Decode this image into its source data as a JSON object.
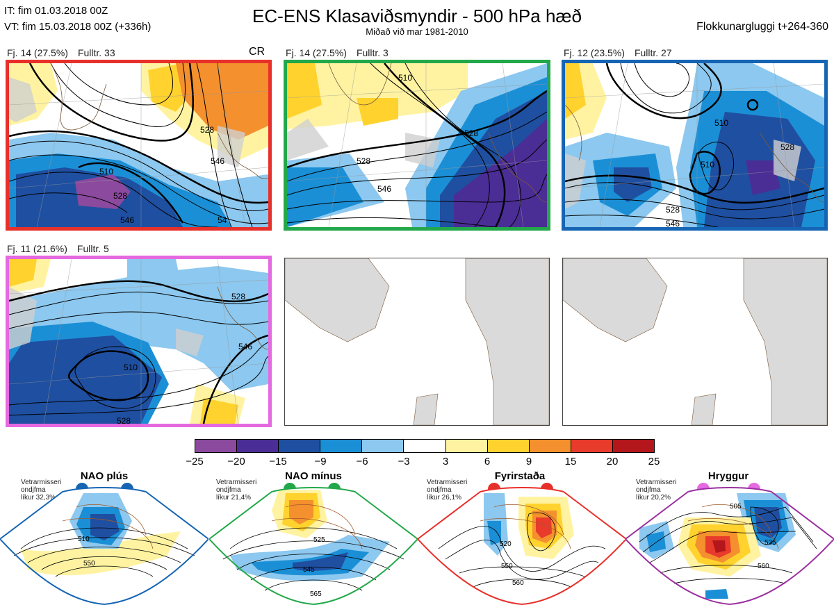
{
  "header": {
    "it": "IT: fim 01.03.2018 00Z",
    "vt": "VT: fim 15.03.2018 00Z  (+336h)",
    "title": "EC-ENS Klasaviðsmyndir - 500 hPa hæð",
    "subtitle": "Miðað við mar 1981-2010",
    "window": "Flokkunargluggi t+264-360"
  },
  "panels": [
    {
      "label": "Fj. 14 (27.5%)",
      "members": "Fulltr. 33",
      "flag": "CR",
      "border": "#e8302a",
      "contours": [
        "528",
        "546",
        "510",
        "546",
        "528",
        "54"
      ]
    },
    {
      "label": "Fj. 14 (27.5%)",
      "members": "Fulltr. 3",
      "flag": "",
      "border": "#22a84a",
      "contours": [
        "528",
        "546",
        "528",
        "510"
      ]
    },
    {
      "label": "Fj. 12 (23.5%)",
      "members": "Fulltr. 27",
      "flag": "",
      "border": "#1565b4",
      "contours": [
        "510",
        "528",
        "546",
        "528",
        "510"
      ]
    },
    {
      "label": "Fj. 11 (21.6%)",
      "members": "Fulltr. 5",
      "flag": "",
      "border": "#e569e0",
      "contours": [
        "510",
        "528",
        "546",
        "528"
      ]
    }
  ],
  "colorbar": {
    "ticks": [
      "−25",
      "−20",
      "−15",
      "−9",
      "−6",
      "−3",
      "3",
      "6",
      "9",
      "15",
      "20",
      "25"
    ],
    "colors": [
      "#8b4a9e",
      "#4b2d96",
      "#1f4fa0",
      "#1b8fd6",
      "#8cc8ef",
      "#ffffff",
      "#fff3a1",
      "#ffd22e",
      "#f4902d",
      "#e83b2c",
      "#b3161b"
    ]
  },
  "schemes": [
    {
      "title": "NAO plús",
      "note": [
        "Vetrarmisseri",
        "ondjfma",
        "líkur 32,3%"
      ],
      "color": "#1565b4",
      "contours": [
        "510",
        "550"
      ]
    },
    {
      "title": "NAO mínus",
      "note": [
        "Vetrarmisseri",
        "ondjfma",
        "líkur 21,4%"
      ],
      "color": "#22a84a",
      "contours": [
        "525",
        "545",
        "565"
      ]
    },
    {
      "title": "Fyrirstaða",
      "note": [
        "Vetrarmisseri",
        "ondjfma",
        "líkur 26,1%"
      ],
      "color": "#e8302a",
      "contours": [
        "520",
        "550",
        "560"
      ]
    },
    {
      "title": "Hryggur",
      "note": [
        "Vetrarmisseri",
        "ondjfma",
        "líkur 20,2%"
      ],
      "color": "#9b2fa0",
      "contours": [
        "505",
        "535",
        "560"
      ]
    }
  ]
}
